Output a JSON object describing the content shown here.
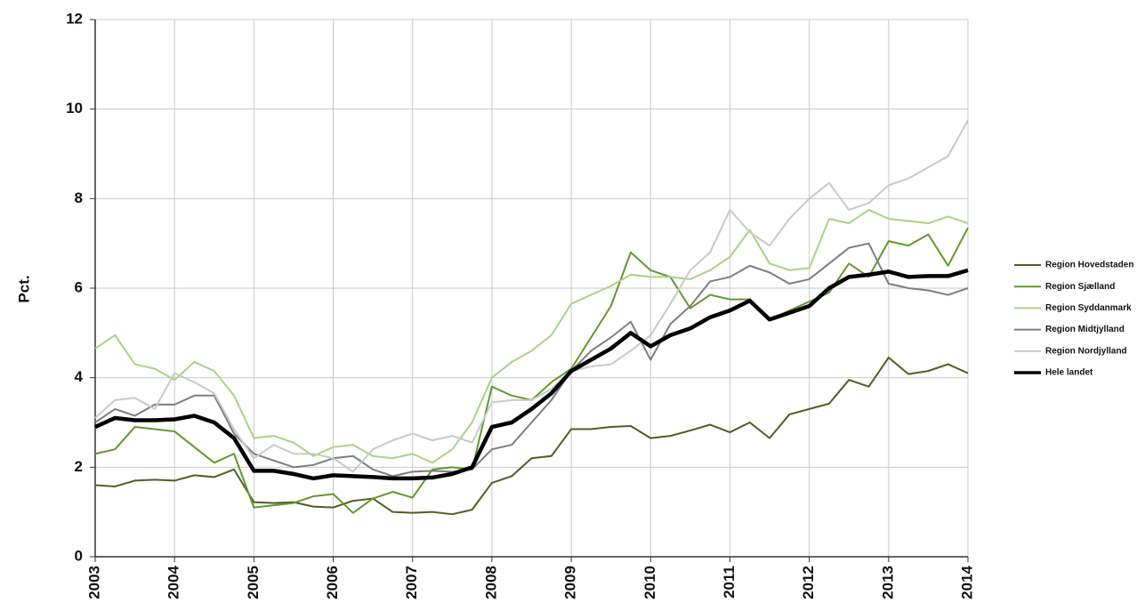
{
  "chart_data": {
    "type": "line",
    "ylabel": "Pct.",
    "categories": [
      "2003",
      null,
      null,
      null,
      "2004",
      null,
      null,
      null,
      "2005",
      null,
      null,
      null,
      "2006",
      null,
      null,
      null,
      "2007",
      null,
      null,
      null,
      "2008",
      null,
      null,
      null,
      "2009",
      null,
      null,
      null,
      "2010",
      null,
      null,
      null,
      "2011",
      null,
      null,
      null,
      "2012",
      null,
      null,
      null,
      "2013",
      null,
      null,
      null,
      "2014"
    ],
    "ylim": [
      0,
      12
    ],
    "yticks": [
      0,
      2,
      4,
      6,
      8,
      10,
      12
    ],
    "grid": true,
    "legend": "right",
    "series": [
      {
        "name": "Region Hovedstaden",
        "color": "#4f5f22",
        "linewidth": 2,
        "values": [
          1.6,
          1.57,
          1.7,
          1.72,
          1.7,
          1.82,
          1.78,
          1.95,
          1.22,
          1.2,
          1.22,
          1.12,
          1.1,
          1.25,
          1.3,
          1.0,
          0.98,
          1.0,
          0.95,
          1.05,
          1.65,
          1.8,
          2.2,
          2.25,
          2.85,
          2.85,
          2.9,
          2.92,
          2.65,
          2.7,
          2.82,
          2.95,
          2.78,
          3.0,
          2.65,
          3.18,
          3.3,
          3.42,
          3.95,
          3.8,
          4.45,
          4.08,
          4.15,
          4.3,
          4.1
        ]
      },
      {
        "name": "Region Sjælland",
        "color": "#5f9a2c",
        "linewidth": 2,
        "values": [
          2.3,
          2.4,
          2.9,
          2.85,
          2.8,
          2.45,
          2.1,
          2.3,
          1.1,
          1.15,
          1.2,
          1.35,
          1.4,
          0.98,
          1.3,
          1.45,
          1.32,
          1.95,
          2.0,
          1.95,
          3.8,
          3.6,
          3.5,
          3.9,
          4.2,
          4.9,
          5.6,
          6.8,
          6.4,
          6.25,
          5.55,
          5.85,
          5.75,
          5.75,
          5.3,
          5.5,
          5.7,
          5.9,
          6.55,
          6.25,
          7.05,
          6.95,
          7.2,
          6.5,
          7.35
        ]
      },
      {
        "name": "Region Syddanmark",
        "color": "#acd184",
        "linewidth": 2,
        "values": [
          4.65,
          4.95,
          4.3,
          4.2,
          3.95,
          4.35,
          4.15,
          3.6,
          2.65,
          2.7,
          2.55,
          2.25,
          2.45,
          2.5,
          2.25,
          2.2,
          2.3,
          2.1,
          2.4,
          3.0,
          4.0,
          4.35,
          4.6,
          4.95,
          5.65,
          5.85,
          6.05,
          6.3,
          6.25,
          6.25,
          6.2,
          6.4,
          6.7,
          7.3,
          6.55,
          6.4,
          6.45,
          7.55,
          7.45,
          7.75,
          7.55,
          7.5,
          7.45,
          7.6,
          7.45
        ]
      },
      {
        "name": "Region Midtjylland",
        "color": "#7e7e7e",
        "linewidth": 2,
        "values": [
          3.0,
          3.3,
          3.15,
          3.4,
          3.4,
          3.6,
          3.6,
          2.75,
          2.3,
          2.15,
          2.0,
          2.05,
          2.2,
          2.25,
          1.95,
          1.8,
          1.9,
          1.92,
          1.9,
          1.95,
          2.4,
          2.5,
          3.0,
          3.5,
          4.15,
          4.6,
          4.9,
          5.25,
          4.4,
          5.2,
          5.6,
          6.15,
          6.25,
          6.5,
          6.35,
          6.1,
          6.2,
          6.55,
          6.9,
          7.0,
          6.1,
          6.0,
          5.95,
          5.85,
          6.0
        ]
      },
      {
        "name": "Region Nordjylland",
        "color": "#c9c9c9",
        "linewidth": 2,
        "values": [
          3.1,
          3.5,
          3.55,
          3.3,
          4.1,
          3.9,
          3.65,
          2.85,
          2.2,
          2.5,
          2.3,
          2.3,
          2.2,
          1.9,
          2.4,
          2.6,
          2.75,
          2.6,
          2.7,
          2.55,
          3.45,
          3.5,
          3.5,
          3.75,
          4.15,
          4.25,
          4.3,
          4.6,
          4.95,
          5.65,
          6.4,
          6.8,
          7.75,
          7.25,
          6.95,
          7.55,
          8.0,
          8.35,
          7.75,
          7.9,
          8.3,
          8.45,
          8.7,
          8.95,
          9.75
        ]
      },
      {
        "name": "Hele landet",
        "color": "#000000",
        "linewidth": 4.5,
        "values": [
          2.9,
          3.1,
          3.05,
          3.05,
          3.07,
          3.15,
          3.0,
          2.65,
          1.92,
          1.92,
          1.85,
          1.75,
          1.82,
          1.8,
          1.78,
          1.75,
          1.75,
          1.77,
          1.85,
          2.0,
          2.9,
          3.0,
          3.3,
          3.65,
          4.15,
          4.4,
          4.65,
          5.0,
          4.7,
          4.95,
          5.1,
          5.35,
          5.5,
          5.72,
          5.3,
          5.45,
          5.6,
          6.0,
          6.25,
          6.3,
          6.37,
          6.25,
          6.27,
          6.27,
          6.4
        ]
      }
    ]
  }
}
